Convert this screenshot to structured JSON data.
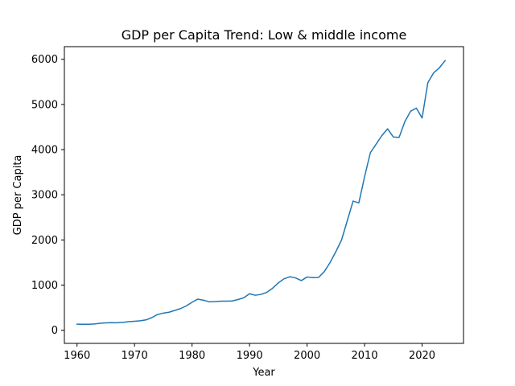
{
  "chart_data": {
    "type": "line",
    "title": "GDP per Capita Trend: Low & middle income",
    "xlabel": "Year",
    "ylabel": "GDP per Capita",
    "xlim": [
      1957.8,
      2027.2
    ],
    "ylim": [
      -290,
      6280
    ],
    "x_ticks": [
      1960,
      1970,
      1980,
      1990,
      2000,
      2010,
      2020
    ],
    "y_ticks": [
      0,
      1000,
      2000,
      3000,
      4000,
      5000,
      6000
    ],
    "grid": false,
    "line_color": "#1f77b4",
    "series": [
      {
        "x": [
          1960,
          1961,
          1962,
          1963,
          1964,
          1965,
          1966,
          1967,
          1968,
          1969,
          1970,
          1971,
          1972,
          1973,
          1974,
          1975,
          1976,
          1977,
          1978,
          1979,
          1980,
          1981,
          1982,
          1983,
          1984,
          1985,
          1986,
          1987,
          1988,
          1989,
          1990,
          1991,
          1992,
          1993,
          1994,
          1995,
          1996,
          1997,
          1998,
          1999,
          2000,
          2001,
          2002,
          2003,
          2004,
          2005,
          2006,
          2007,
          2008,
          2009,
          2010,
          2011,
          2012,
          2013,
          2014,
          2015,
          2016,
          2017,
          2018,
          2019,
          2020,
          2021,
          2022,
          2023,
          2024
        ],
        "values": [
          135,
          133,
          132,
          140,
          155,
          165,
          168,
          167,
          175,
          190,
          200,
          210,
          230,
          280,
          350,
          380,
          400,
          440,
          480,
          540,
          620,
          690,
          665,
          630,
          635,
          645,
          645,
          650,
          680,
          720,
          810,
          775,
          795,
          840,
          930,
          1050,
          1140,
          1185,
          1160,
          1100,
          1180,
          1165,
          1170,
          1300,
          1500,
          1740,
          2000,
          2430,
          2860,
          2820,
          3400,
          3930,
          4120,
          4310,
          4460,
          4280,
          4270,
          4620,
          4850,
          4920,
          4700,
          5480,
          5700,
          5810,
          5970
        ]
      }
    ]
  }
}
